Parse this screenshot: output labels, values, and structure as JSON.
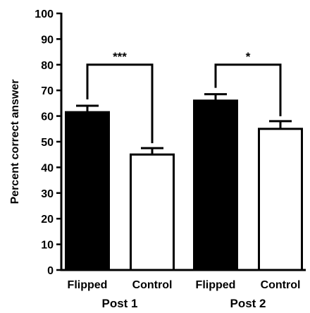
{
  "chart_data": {
    "type": "bar",
    "title": "",
    "ylabel": "Percent correct answer",
    "ylim": [
      0,
      100
    ],
    "yticks": [
      0,
      10,
      20,
      30,
      40,
      50,
      60,
      70,
      80,
      90,
      100
    ],
    "groups": [
      {
        "label": "Post 1",
        "bars": [
          {
            "category": "Flipped",
            "value": 61.5,
            "error": 2.5,
            "fill": "#000000"
          },
          {
            "category": "Control",
            "value": 45,
            "error": 2.5,
            "fill": "#ffffff"
          }
        ],
        "significance": "***"
      },
      {
        "label": "Post 2",
        "bars": [
          {
            "category": "Flipped",
            "value": 66,
            "error": 2.5,
            "fill": "#000000"
          },
          {
            "category": "Control",
            "value": 55,
            "error": 3,
            "fill": "#ffffff"
          }
        ],
        "significance": "*"
      }
    ],
    "grid": false,
    "legend": "none"
  }
}
